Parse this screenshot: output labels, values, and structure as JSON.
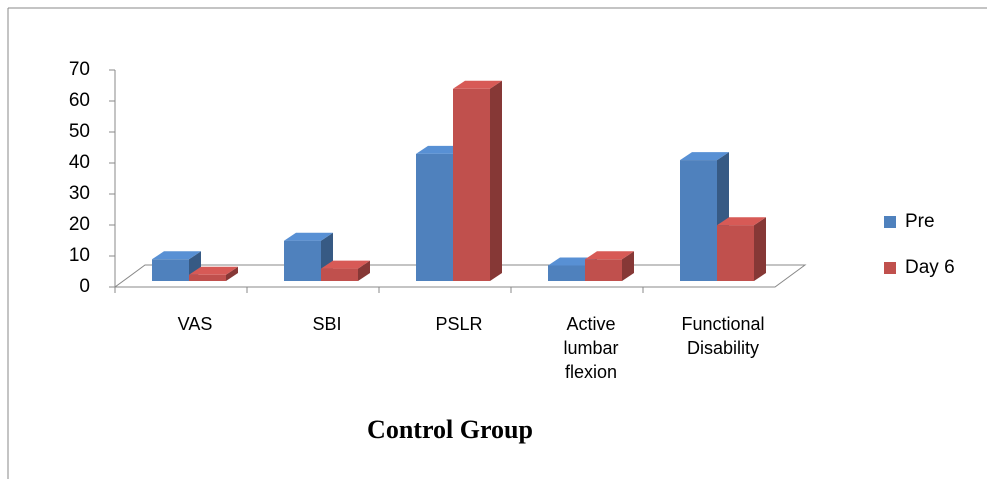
{
  "chart_data": {
    "type": "bar3d",
    "title": "Control Group",
    "categories": [
      "VAS",
      "SBI",
      "PSLR",
      "Active lumbar flexion",
      "Functional Disability"
    ],
    "series": [
      {
        "name": "Pre",
        "color": "#4f81bd",
        "values": [
          7,
          13,
          41,
          5,
          39
        ]
      },
      {
        "name": "Day 6",
        "color": "#c0504d",
        "values": [
          2,
          4,
          62,
          7,
          18
        ]
      }
    ],
    "ylim": [
      0,
      70
    ],
    "yticks": [
      0,
      10,
      20,
      30,
      40,
      50,
      60,
      70
    ],
    "legend": "right"
  }
}
